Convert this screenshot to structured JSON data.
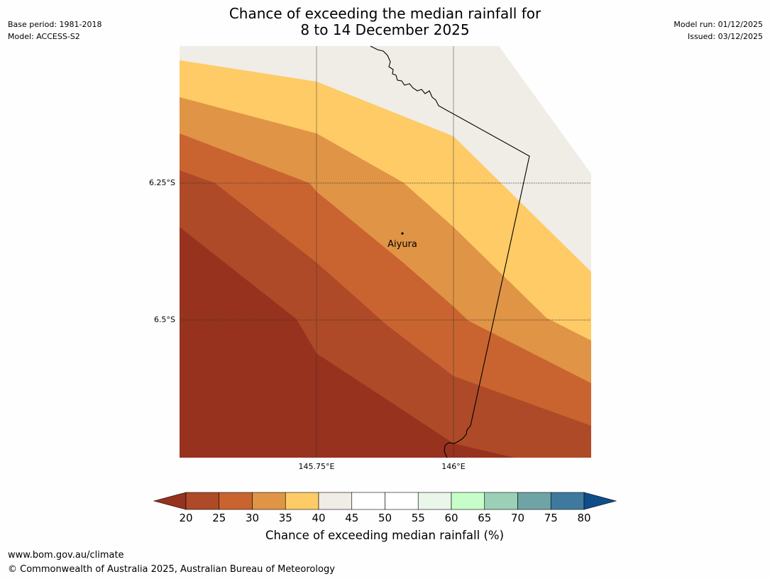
{
  "title": {
    "line1": "Chance of exceeding the median rainfall for",
    "line2": "8 to 14 December 2025"
  },
  "meta_left": {
    "base_period": "Base period: 1981-2018",
    "model": "Model: ACCESS-S2"
  },
  "meta_right": {
    "model_run": "Model run: 01/12/2025",
    "issued": "Issued: 03/12/2025"
  },
  "map": {
    "lat_labels": [
      "6.25°S",
      "6.5°S"
    ],
    "lon_labels": [
      "145.75°E",
      "146°E"
    ],
    "place": {
      "name": "Aiyura"
    },
    "bands": [
      {
        "range": "<20",
        "color": "#96321e"
      },
      {
        "range": "20-25",
        "color": "#ae4a27"
      },
      {
        "range": "25-30",
        "color": "#c96430"
      },
      {
        "range": "30-35",
        "color": "#e09445"
      },
      {
        "range": "35-40",
        "color": "#fecb66"
      },
      {
        "range": "40-45",
        "color": "#f0ece6"
      }
    ]
  },
  "colorbar": {
    "ticks": [
      "20",
      "25",
      "30",
      "35",
      "40",
      "45",
      "50",
      "55",
      "60",
      "65",
      "70",
      "75",
      "80"
    ],
    "under_color": "#96321e",
    "over_color": "#0f4c8a",
    "colors": [
      "#ae4a27",
      "#c96430",
      "#e09445",
      "#fecb66",
      "#f0ece6",
      "#ffffff",
      "#ffffff",
      "#e9f6e9",
      "#c7fdc8",
      "#9ccfb8",
      "#6ea4a6",
      "#3f7a9e"
    ],
    "label": "Chance of exceeding median rainfall (%)"
  },
  "footer": {
    "url": "www.bom.gov.au/climate",
    "copyright": "© Commonwealth of Australia 2025, Australian Bureau of Meteorology"
  }
}
